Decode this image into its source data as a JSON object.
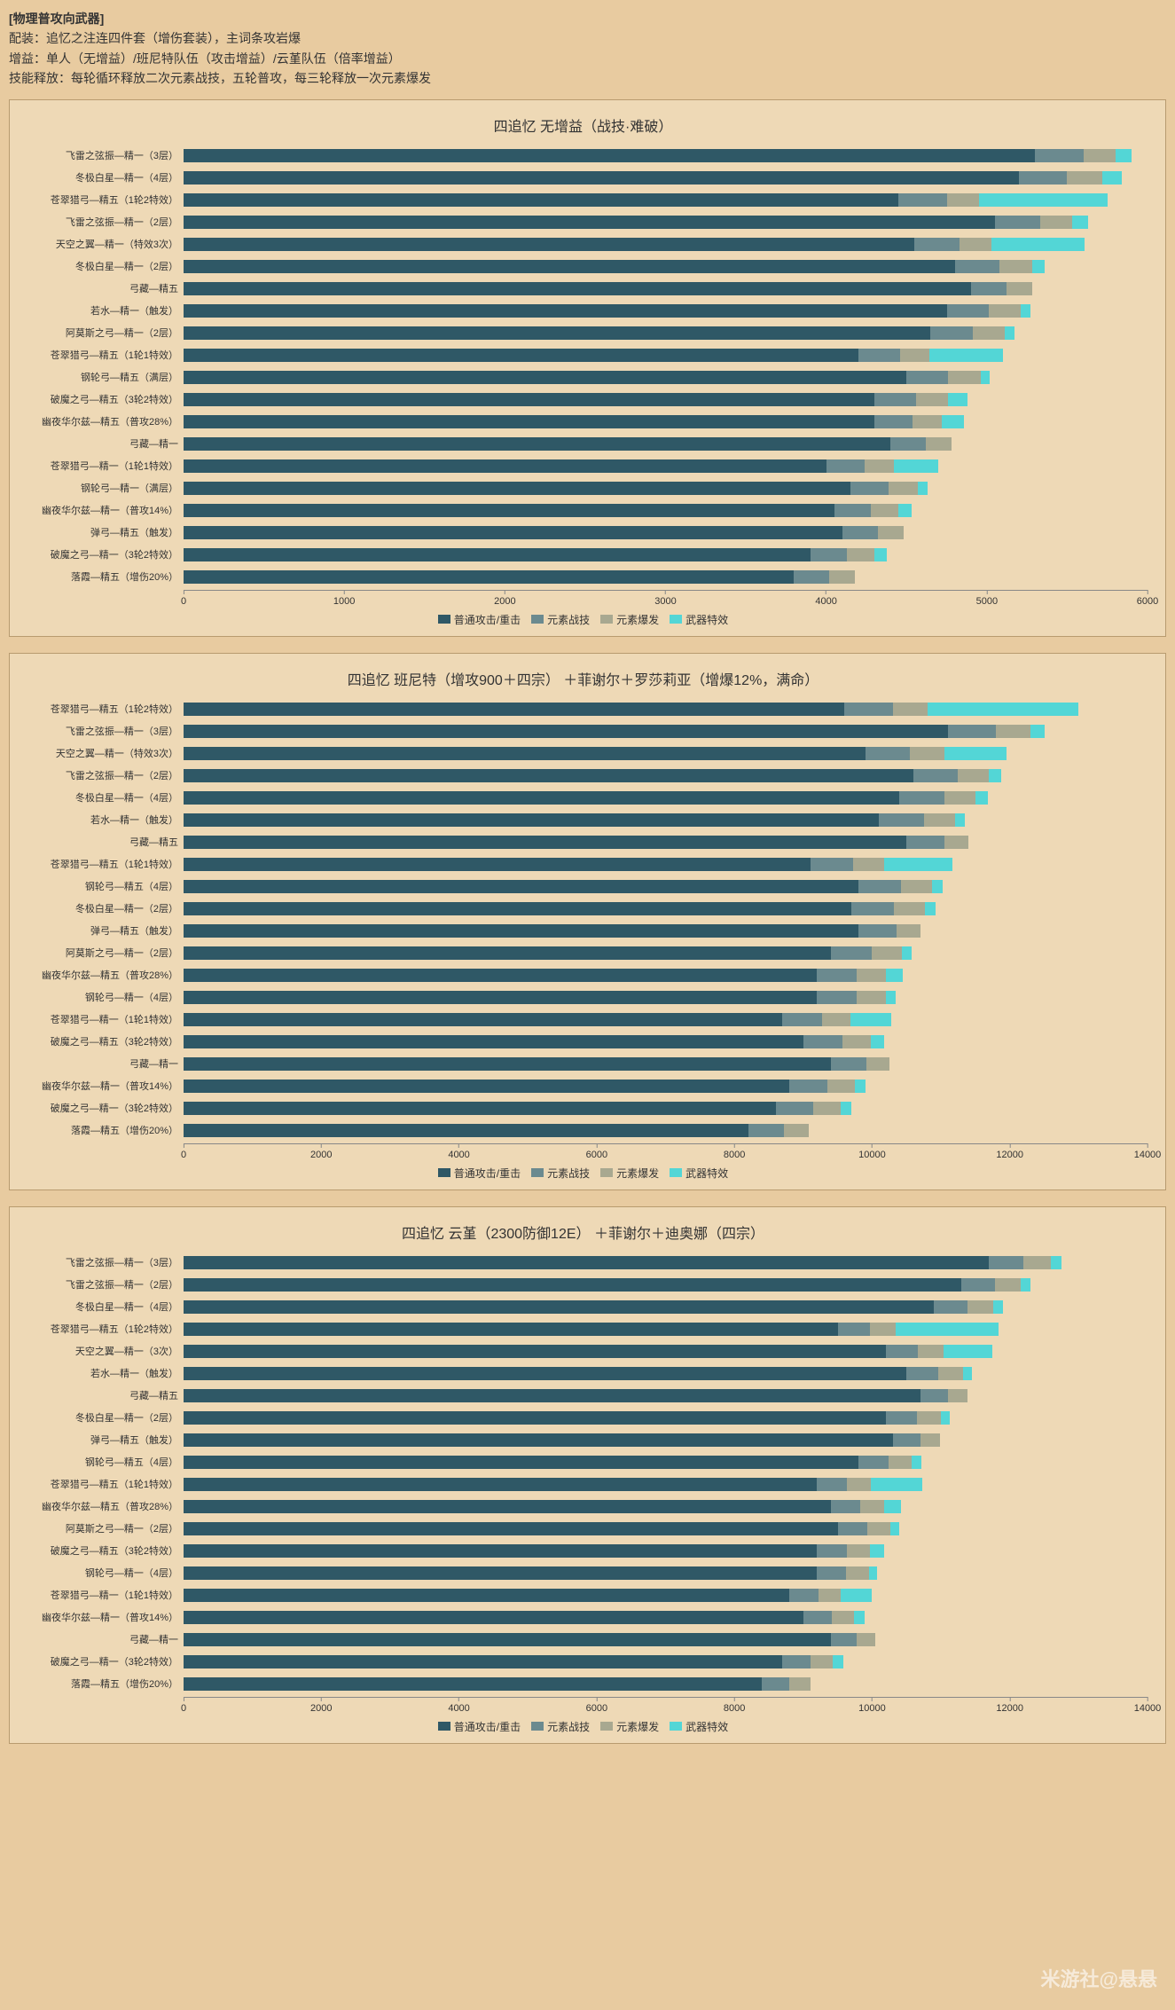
{
  "header": {
    "title": "[物理普攻向武器]",
    "line1": "配装：追忆之注连四件套（增伤套装），主词条攻岩爆",
    "line2": "增益：单人（无增益）/班尼特队伍（攻击增益）/云堇队伍（倍率增益）",
    "line3": "技能释放：每轮循环释放二次元素战技，五轮普攻，每三轮释放一次元素爆发"
  },
  "colors": {
    "na": "#2f5866",
    "skill": "#6b8a8f",
    "burst": "#a8a890",
    "weapon": "#53d6d6",
    "panel_bg": "#eed9b6",
    "page_bg": "#e8cba0"
  },
  "legend": [
    "普通攻击/重击",
    "元素战技",
    "元素爆发",
    "武器特效"
  ],
  "charts": [
    {
      "title": "四追忆 无增益（战技·难破）",
      "xmax": 6000,
      "xstep": 1000,
      "rows": [
        {
          "label": "飞雷之弦振—精一（3层）",
          "v": [
            5300,
            300,
            200,
            100
          ]
        },
        {
          "label": "冬极白星—精一（4层）",
          "v": [
            5200,
            300,
            220,
            120
          ]
        },
        {
          "label": "苍翠猎弓—精五（1轮2特效）",
          "v": [
            4450,
            300,
            200,
            800
          ]
        },
        {
          "label": "飞雷之弦振—精一（2层）",
          "v": [
            5050,
            280,
            200,
            100
          ]
        },
        {
          "label": "天空之翼—精一（特效3次）",
          "v": [
            4550,
            280,
            200,
            580
          ]
        },
        {
          "label": "冬极白星—精一（2层）",
          "v": [
            4800,
            280,
            200,
            80
          ]
        },
        {
          "label": "弓藏—精五",
          "v": [
            4900,
            220,
            160,
            0
          ]
        },
        {
          "label": "若水—精一（触发）",
          "v": [
            4750,
            260,
            200,
            60
          ]
        },
        {
          "label": "阿莫斯之弓—精一（2层）",
          "v": [
            4650,
            260,
            200,
            60
          ]
        },
        {
          "label": "苍翠猎弓—精五（1轮1特效）",
          "v": [
            4200,
            260,
            180,
            460
          ]
        },
        {
          "label": "钢轮弓—精五（满层）",
          "v": [
            4500,
            260,
            200,
            60
          ]
        },
        {
          "label": "破魔之弓—精五（3轮2特效）",
          "v": [
            4300,
            260,
            200,
            120
          ]
        },
        {
          "label": "幽夜华尔兹—精五（普攻28%）",
          "v": [
            4300,
            240,
            180,
            140
          ]
        },
        {
          "label": "弓藏—精一",
          "v": [
            4400,
            220,
            160,
            0
          ]
        },
        {
          "label": "苍翠猎弓—精一（1轮1特效）",
          "v": [
            4000,
            240,
            180,
            280
          ]
        },
        {
          "label": "钢轮弓—精一（满层）",
          "v": [
            4150,
            240,
            180,
            60
          ]
        },
        {
          "label": "幽夜华尔兹—精一（普攻14%）",
          "v": [
            4050,
            230,
            170,
            80
          ]
        },
        {
          "label": "弹弓—精五（触发）",
          "v": [
            4100,
            220,
            160,
            0
          ]
        },
        {
          "label": "破魔之弓—精一（3轮2特效）",
          "v": [
            3900,
            230,
            170,
            80
          ]
        },
        {
          "label": "落霞—精五（增伤20%）",
          "v": [
            3800,
            220,
            160,
            0
          ]
        }
      ]
    },
    {
      "title": "四追忆 班尼特（增攻900＋四宗） ＋菲谢尔＋罗莎莉亚（增爆12%，满命）",
      "xmax": 14000,
      "xstep": 2000,
      "rows": [
        {
          "label": "苍翠猎弓—精五（1轮2特效）",
          "v": [
            9600,
            700,
            500,
            2200
          ]
        },
        {
          "label": "飞雷之弦振—精一（3层）",
          "v": [
            11100,
            700,
            500,
            200
          ]
        },
        {
          "label": "天空之翼—精一（特效3次）",
          "v": [
            9900,
            650,
            500,
            900
          ]
        },
        {
          "label": "飞雷之弦振—精一（2层）",
          "v": [
            10600,
            650,
            450,
            180
          ]
        },
        {
          "label": "冬极白星—精一（4层）",
          "v": [
            10400,
            650,
            450,
            180
          ]
        },
        {
          "label": "若水—精一（触发）",
          "v": [
            10100,
            650,
            450,
            150
          ]
        },
        {
          "label": "弓藏—精五",
          "v": [
            10500,
            550,
            350,
            0
          ]
        },
        {
          "label": "苍翠猎弓—精五（1轮1特效）",
          "v": [
            9100,
            620,
            450,
            1000
          ]
        },
        {
          "label": "钢轮弓—精五（4层）",
          "v": [
            9800,
            620,
            450,
            150
          ]
        },
        {
          "label": "冬极白星—精一（2层）",
          "v": [
            9700,
            620,
            450,
            150
          ]
        },
        {
          "label": "弹弓—精五（触发）",
          "v": [
            9800,
            550,
            350,
            0
          ]
        },
        {
          "label": "阿莫斯之弓—精一（2层）",
          "v": [
            9400,
            600,
            430,
            150
          ]
        },
        {
          "label": "幽夜华尔兹—精五（普攻28%）",
          "v": [
            9200,
            580,
            420,
            250
          ]
        },
        {
          "label": "钢轮弓—精一（4层）",
          "v": [
            9200,
            580,
            420,
            140
          ]
        },
        {
          "label": "苍翠猎弓—精一（1轮1特效）",
          "v": [
            8700,
            570,
            410,
            600
          ]
        },
        {
          "label": "破魔之弓—精五（3轮2特效）",
          "v": [
            9000,
            570,
            410,
            200
          ]
        },
        {
          "label": "弓藏—精一",
          "v": [
            9400,
            520,
            330,
            0
          ]
        },
        {
          "label": "幽夜华尔兹—精一（普攻14%）",
          "v": [
            8800,
            550,
            400,
            150
          ]
        },
        {
          "label": "破魔之弓—精一（3轮2特效）",
          "v": [
            8600,
            550,
            400,
            150
          ]
        },
        {
          "label": "落霞—精五（增伤20%）",
          "v": [
            8200,
            520,
            360,
            0
          ]
        }
      ]
    },
    {
      "title": "四追忆 云堇（2300防御12E） ＋菲谢尔＋迪奥娜（四宗）",
      "xmax": 14000,
      "xstep": 2000,
      "rows": [
        {
          "label": "飞雷之弦振—精一（3层）",
          "v": [
            11700,
            500,
            400,
            150
          ]
        },
        {
          "label": "飞雷之弦振—精一（2层）",
          "v": [
            11300,
            480,
            380,
            140
          ]
        },
        {
          "label": "冬极白星—精一（4层）",
          "v": [
            10900,
            480,
            380,
            140
          ]
        },
        {
          "label": "苍翠猎弓—精五（1轮2特效）",
          "v": [
            9500,
            470,
            370,
            1500
          ]
        },
        {
          "label": "天空之翼—精一（3次）",
          "v": [
            10200,
            470,
            370,
            700
          ]
        },
        {
          "label": "若水—精一（触发）",
          "v": [
            10500,
            460,
            360,
            130
          ]
        },
        {
          "label": "弓藏—精五",
          "v": [
            10700,
            400,
            280,
            0
          ]
        },
        {
          "label": "冬极白星—精一（2层）",
          "v": [
            10200,
            450,
            350,
            130
          ]
        },
        {
          "label": "弹弓—精五（触发）",
          "v": [
            10300,
            400,
            280,
            0
          ]
        },
        {
          "label": "钢轮弓—精五（4层）",
          "v": [
            9800,
            440,
            340,
            130
          ]
        },
        {
          "label": "苍翠猎弓—精五（1轮1特效）",
          "v": [
            9200,
            440,
            340,
            750
          ]
        },
        {
          "label": "幽夜华尔兹—精五（普攻28%）",
          "v": [
            9400,
            430,
            340,
            250
          ]
        },
        {
          "label": "阿莫斯之弓—精一（2层）",
          "v": [
            9500,
            430,
            340,
            130
          ]
        },
        {
          "label": "破魔之弓—精五（3轮2特效）",
          "v": [
            9200,
            430,
            340,
            200
          ]
        },
        {
          "label": "钢轮弓—精一（4层）",
          "v": [
            9200,
            420,
            330,
            120
          ]
        },
        {
          "label": "苍翠猎弓—精一（1轮1特效）",
          "v": [
            8800,
            420,
            330,
            450
          ]
        },
        {
          "label": "幽夜华尔兹—精一（普攻14%）",
          "v": [
            9000,
            410,
            330,
            150
          ]
        },
        {
          "label": "弓藏—精一",
          "v": [
            9400,
            380,
            260,
            0
          ]
        },
        {
          "label": "破魔之弓—精一（3轮2特效）",
          "v": [
            8700,
            410,
            320,
            150
          ]
        },
        {
          "label": "落霞—精五（增伤20%）",
          "v": [
            8400,
            400,
            300,
            0
          ]
        }
      ]
    }
  ],
  "watermark": "米游社@悬悬"
}
